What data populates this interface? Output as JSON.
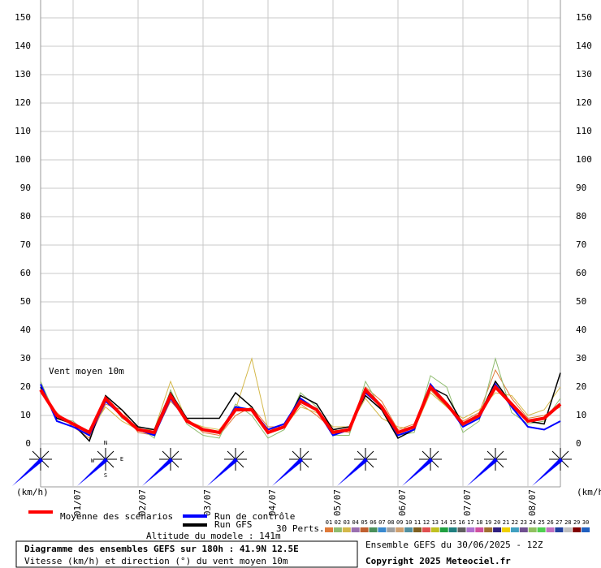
{
  "chart_data": {
    "type": "line",
    "annotation": "Vent moyen 10m",
    "y_unit_left": "(km/h)",
    "y_unit_right": "(km/h)",
    "x": [
      0,
      6,
      12,
      18,
      24,
      30,
      36,
      42,
      48,
      54,
      60,
      66,
      72,
      78,
      84,
      90,
      96,
      102,
      108,
      114,
      120,
      126,
      132,
      138,
      144,
      150,
      156,
      162,
      168,
      174,
      180,
      186,
      192
    ],
    "xlim": [
      0,
      192
    ],
    "xticks": [
      {
        "value": 12,
        "label": "01/07"
      },
      {
        "value": 36,
        "label": "02/07"
      },
      {
        "value": 60,
        "label": "03/07"
      },
      {
        "value": 84,
        "label": "04/07"
      },
      {
        "value": 108,
        "label": "05/07"
      },
      {
        "value": 132,
        "label": "06/07"
      },
      {
        "value": 156,
        "label": "07/07"
      },
      {
        "value": 180,
        "label": "08/07"
      }
    ],
    "ylim": [
      0,
      150
    ],
    "yticks": [
      0,
      10,
      20,
      30,
      40,
      50,
      60,
      70,
      80,
      90,
      100,
      110,
      120,
      130,
      140,
      150
    ],
    "grid": true,
    "series": [
      {
        "name": "Run GFS",
        "color": "#000000",
        "width": 1.5,
        "values": [
          20,
          9,
          7,
          1,
          17,
          12,
          6,
          5,
          18,
          9,
          9,
          9,
          18,
          13,
          4,
          6,
          17,
          14,
          5,
          6,
          17,
          12,
          2,
          5,
          20,
          17,
          7,
          10,
          22,
          14,
          8,
          7,
          25
        ]
      },
      {
        "name": "Run de contrôle",
        "color": "#0000ff",
        "width": 2,
        "values": [
          21,
          8,
          6,
          3,
          15,
          10,
          5,
          3,
          16,
          8,
          5,
          4,
          13,
          12,
          5,
          7,
          16,
          12,
          3,
          5,
          18,
          13,
          3,
          5,
          21,
          14,
          6,
          9,
          21,
          13,
          6,
          5,
          8
        ]
      },
      {
        "name": "Moyenne des scénarios",
        "color": "#ff0000",
        "width": 4,
        "values": [
          19,
          10,
          7,
          4,
          16,
          10,
          5,
          4,
          17,
          8,
          5,
          4,
          12,
          12,
          4,
          6,
          15,
          12,
          4,
          5,
          19,
          13,
          4,
          6,
          20,
          14,
          7,
          10,
          20,
          14,
          8,
          9,
          14
        ]
      }
    ],
    "perturbations_label": "30 Perts.",
    "perturbations": [
      {
        "name": "01",
        "color": "#e07b39",
        "values": [
          18,
          11,
          6,
          2,
          14,
          12,
          4,
          3,
          15,
          9,
          4,
          3,
          10,
          13,
          6,
          6,
          14,
          10,
          5,
          4,
          20,
          15,
          5,
          7,
          19,
          13,
          8,
          11,
          26,
          16,
          9,
          10,
          13
        ]
      },
      {
        "name": "02",
        "color": "#8fbc6f",
        "values": [
          22,
          9,
          8,
          3,
          17,
          9,
          6,
          2,
          19,
          7,
          3,
          2,
          14,
          10,
          2,
          5,
          18,
          13,
          3,
          3,
          22,
          12,
          3,
          4,
          24,
          20,
          4,
          8,
          30,
          11,
          7,
          8,
          16
        ]
      },
      {
        "name": "03",
        "color": "#d4b84a",
        "values": [
          19,
          10,
          7,
          4,
          13,
          8,
          5,
          5,
          22,
          8,
          6,
          5,
          12,
          30,
          5,
          6,
          13,
          11,
          6,
          6,
          16,
          9,
          6,
          5,
          18,
          13,
          9,
          12,
          18,
          17,
          10,
          12,
          20
        ]
      },
      {
        "name": "04",
        "color": "#9a6fb0"
      },
      {
        "name": "05",
        "color": "#c06030"
      },
      {
        "name": "06",
        "color": "#4a8f5a"
      },
      {
        "name": "07",
        "color": "#3a8ad0"
      },
      {
        "name": "08",
        "color": "#a0a0a0"
      },
      {
        "name": "09",
        "color": "#d0a070"
      },
      {
        "name": "10",
        "color": "#5090a0"
      },
      {
        "name": "11",
        "color": "#806020"
      },
      {
        "name": "12",
        "color": "#e05050"
      },
      {
        "name": "13",
        "color": "#c0c020"
      },
      {
        "name": "14",
        "color": "#20a040"
      },
      {
        "name": "15",
        "color": "#208080"
      },
      {
        "name": "16",
        "color": "#606060"
      },
      {
        "name": "17",
        "color": "#b070d0"
      },
      {
        "name": "18",
        "color": "#d050a0"
      },
      {
        "name": "19",
        "color": "#a07030"
      },
      {
        "name": "20",
        "color": "#302080"
      },
      {
        "name": "21",
        "color": "#f0d000"
      },
      {
        "name": "22",
        "color": "#40a0c0"
      },
      {
        "name": "23",
        "color": "#705090"
      },
      {
        "name": "24",
        "color": "#90c060"
      },
      {
        "name": "25",
        "color": "#50d050"
      },
      {
        "name": "26",
        "color": "#c070c0"
      },
      {
        "name": "27",
        "color": "#2040a0"
      },
      {
        "name": "28",
        "color": "#c0c0c0"
      },
      {
        "name": "29",
        "color": "#800000"
      },
      {
        "name": "30",
        "color": "#2060c0"
      }
    ],
    "compass": [
      "N",
      "E",
      "S",
      "W"
    ],
    "altitude": "Altitude du modele : 141m",
    "info_title": "Diagramme des ensembles GEFS sur 180h : 41.9N 12.5E",
    "info_subtitle": "Vitesse (km/h) et direction (°) du vent moyen 10m",
    "run": "Ensemble GEFS du 30/06/2025 - 12Z",
    "copyright": "Copyright 2025 Meteociel.fr"
  }
}
